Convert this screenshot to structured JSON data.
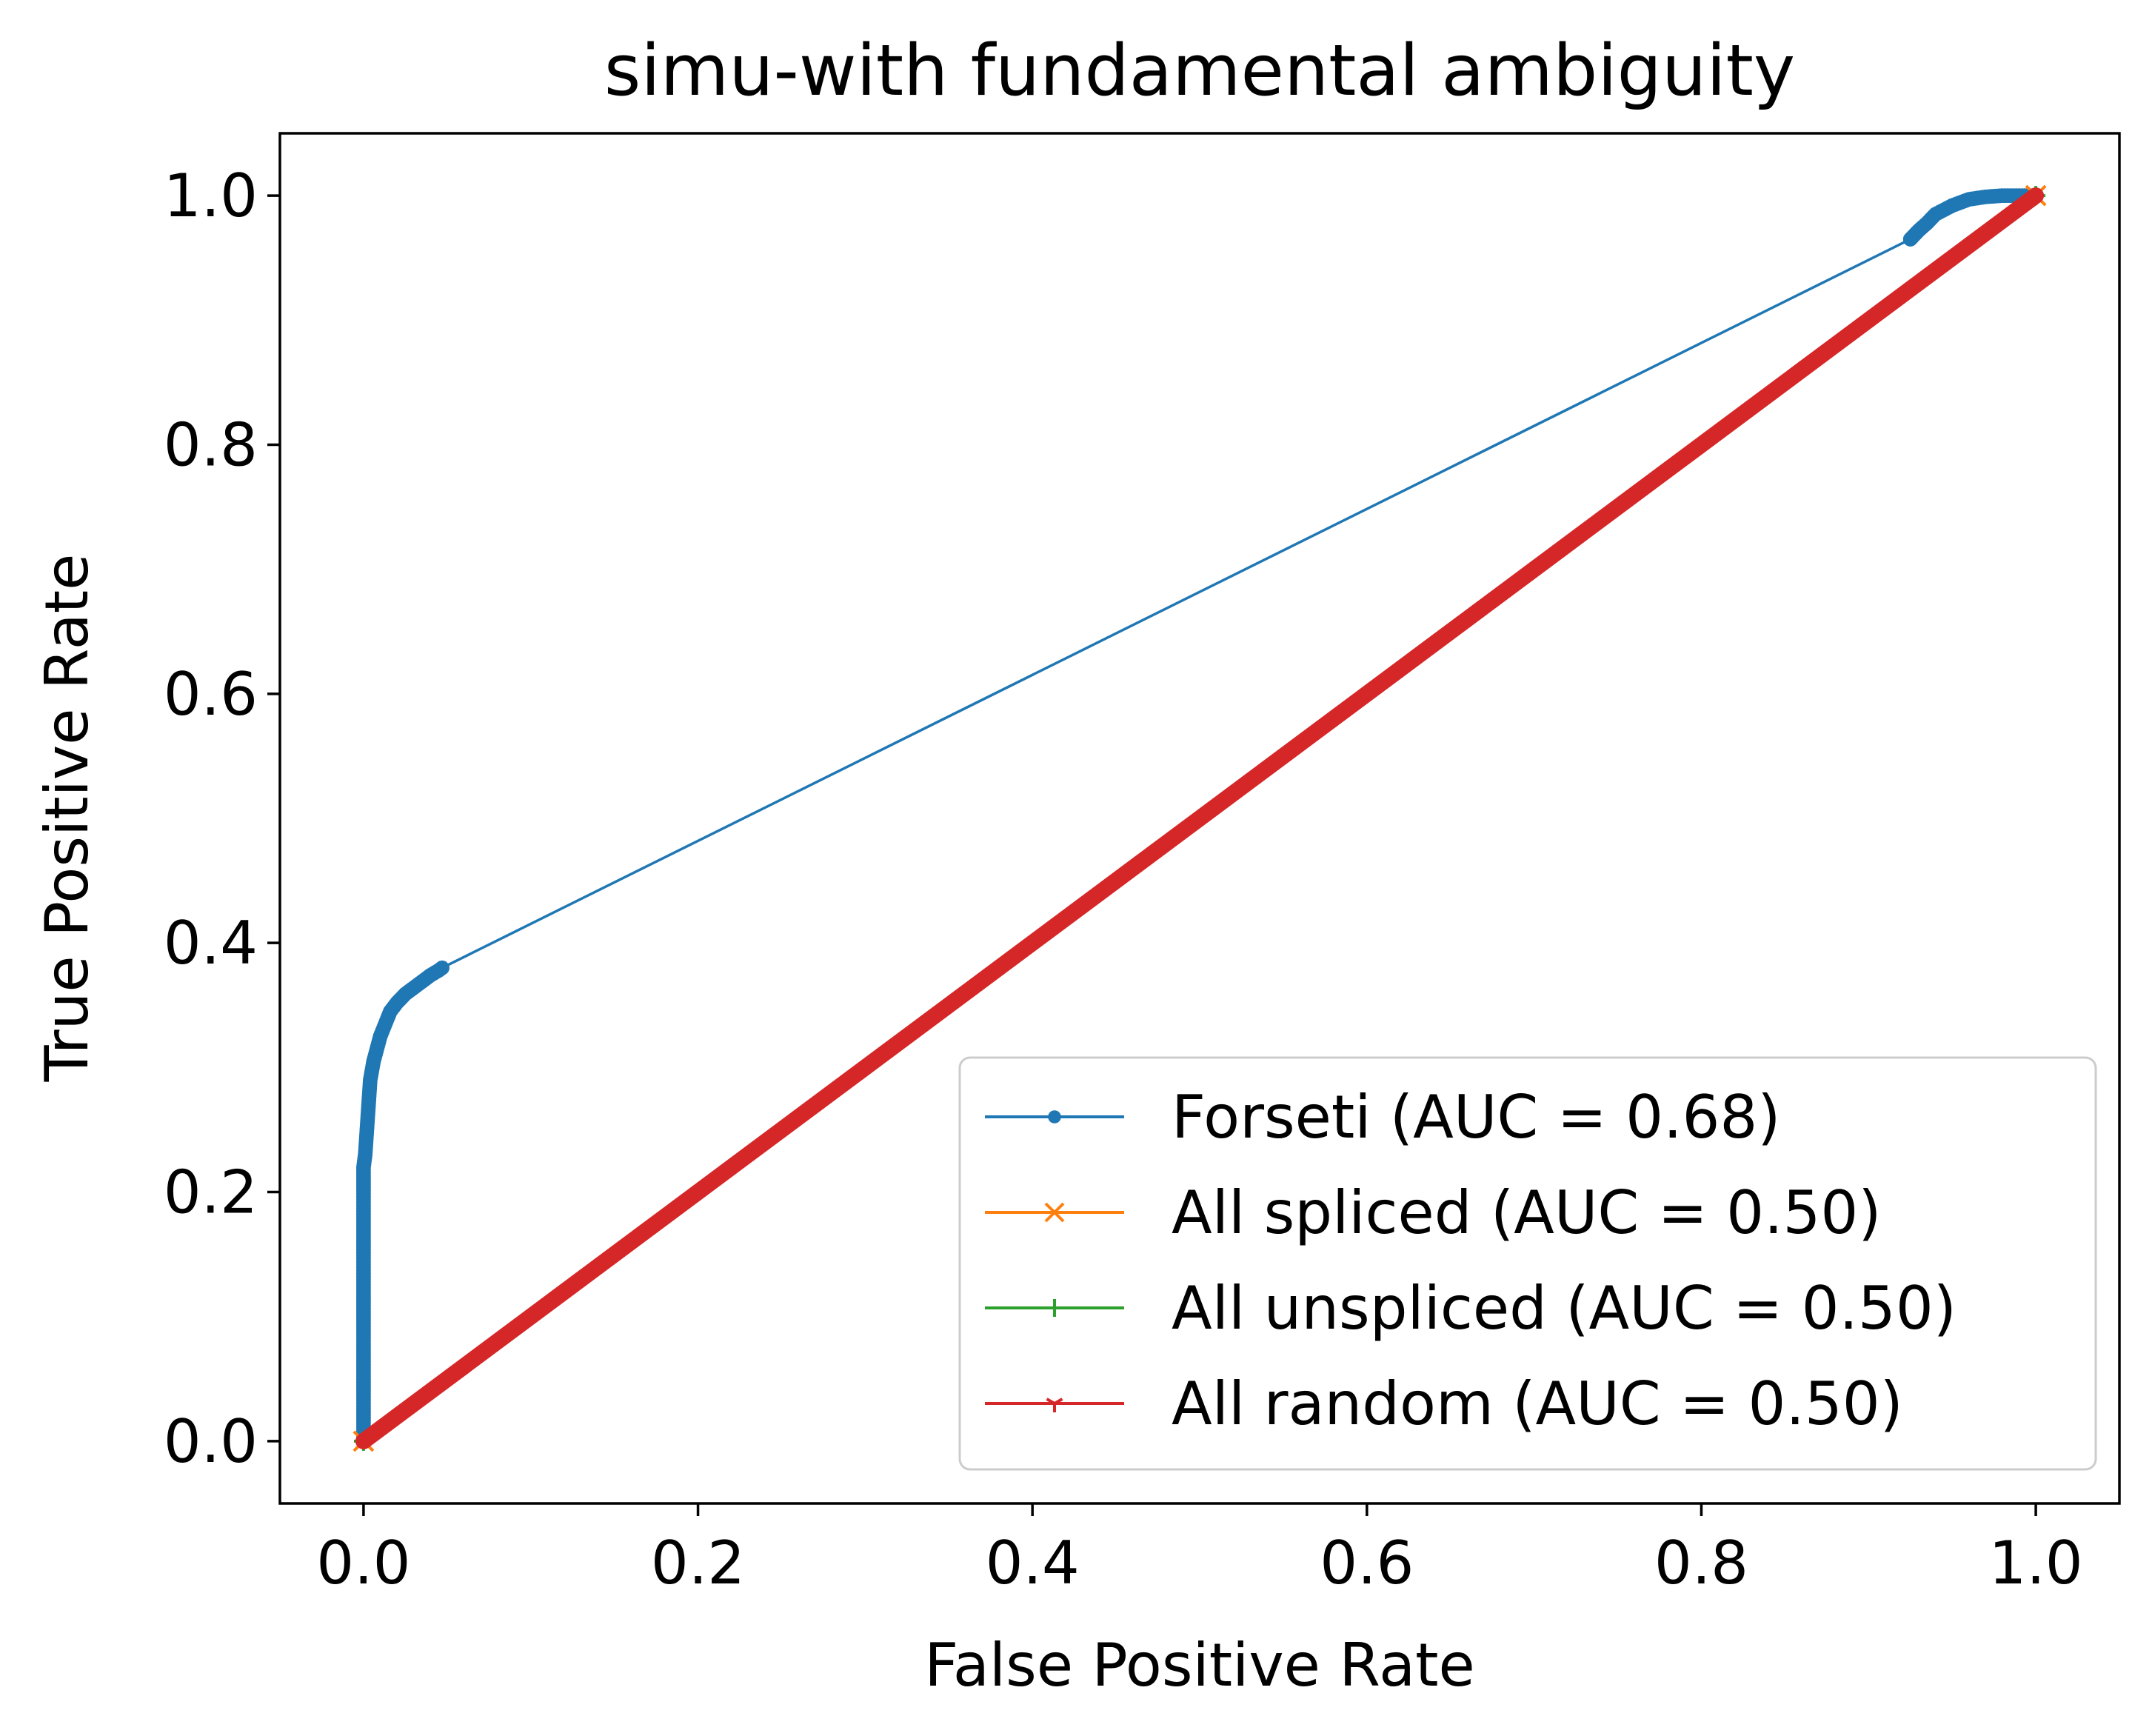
{
  "chart_data": {
    "type": "line",
    "title": "simu-with fundamental ambiguity",
    "xlabel": "False Positive Rate",
    "ylabel": "True Positive Rate",
    "xlim": [
      -0.05,
      1.05
    ],
    "ylim": [
      -0.05,
      1.05
    ],
    "xticks": [
      0.0,
      0.2,
      0.4,
      0.6,
      0.8,
      1.0
    ],
    "yticks": [
      0.0,
      0.2,
      0.4,
      0.6,
      0.8,
      1.0
    ],
    "xtick_labels": [
      "0.0",
      "0.2",
      "0.4",
      "0.6",
      "0.8",
      "1.0"
    ],
    "ytick_labels": [
      "0.0",
      "0.2",
      "0.4",
      "0.6",
      "0.8",
      "1.0"
    ],
    "grid": false,
    "legend_position": "lower-right",
    "series": [
      {
        "name": "Forseti (AUC = 0.68)",
        "color": "#1f77b4",
        "marker": "dot",
        "points": [
          [
            0.0,
            0.0
          ],
          [
            0.0,
            0.22
          ],
          [
            0.001,
            0.23
          ],
          [
            0.002,
            0.25
          ],
          [
            0.003,
            0.27
          ],
          [
            0.004,
            0.29
          ],
          [
            0.006,
            0.305
          ],
          [
            0.008,
            0.315
          ],
          [
            0.01,
            0.325
          ],
          [
            0.013,
            0.335
          ],
          [
            0.016,
            0.345
          ],
          [
            0.02,
            0.352
          ],
          [
            0.025,
            0.359
          ],
          [
            0.03,
            0.364
          ],
          [
            0.035,
            0.369
          ],
          [
            0.04,
            0.374
          ],
          [
            0.045,
            0.378
          ],
          [
            0.047,
            0.38
          ],
          [
            0.925,
            0.965
          ],
          [
            0.93,
            0.972
          ],
          [
            0.935,
            0.978
          ],
          [
            0.94,
            0.985
          ],
          [
            0.95,
            0.992
          ],
          [
            0.96,
            0.997
          ],
          [
            0.97,
            0.999
          ],
          [
            0.98,
            1.0
          ],
          [
            1.0,
            1.0
          ]
        ]
      },
      {
        "name": "All spliced (AUC = 0.50)",
        "color": "#ff7f0e",
        "marker": "x",
        "points": [
          [
            0.0,
            0.0
          ],
          [
            1.0,
            1.0
          ]
        ]
      },
      {
        "name": "All unspliced (AUC = 0.50)",
        "color": "#2ca02c",
        "marker": "plus",
        "points": [
          [
            0.0,
            0.0
          ],
          [
            1.0,
            1.0
          ]
        ]
      },
      {
        "name": "All random (AUC = 0.50)",
        "color": "#d62728",
        "marker": "tri",
        "dense": true,
        "points": [
          [
            0.0,
            0.0
          ],
          [
            1.0,
            1.0
          ]
        ]
      }
    ]
  }
}
